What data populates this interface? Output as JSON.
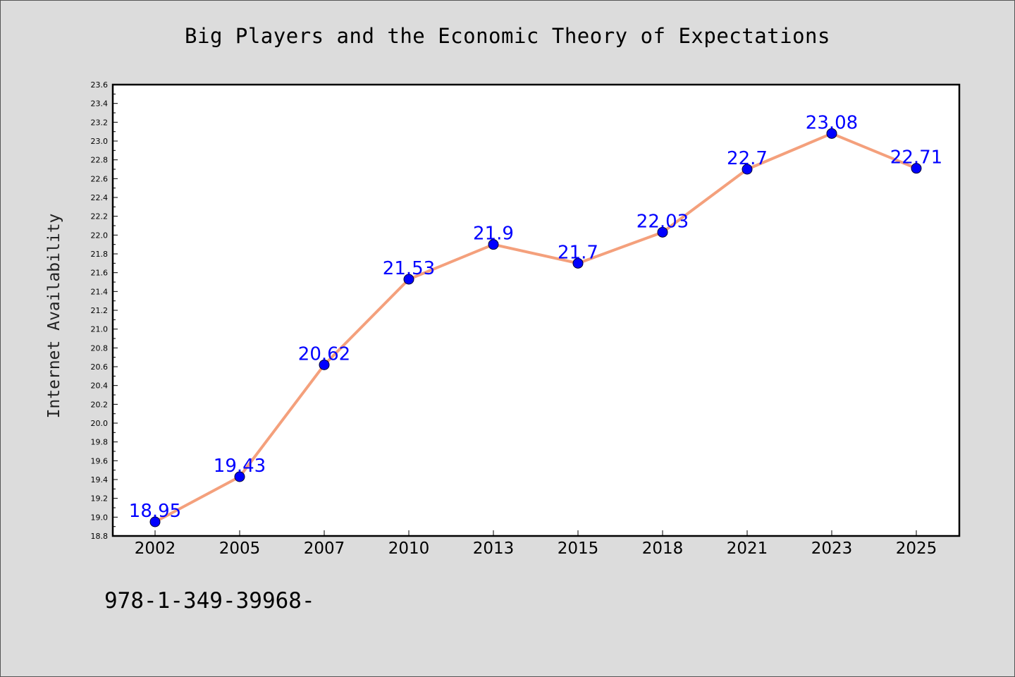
{
  "chart_data": {
    "type": "line",
    "title": "Big Players and the Economic Theory of Expectations",
    "xlabel": "",
    "ylabel": "Internet Availability",
    "categories": [
      "2002",
      "2005",
      "2007",
      "2010",
      "2013",
      "2015",
      "2018",
      "2021",
      "2023",
      "2025"
    ],
    "series": [
      {
        "values": [
          18.95,
          19.43,
          20.62,
          21.53,
          21.9,
          21.7,
          22.03,
          22.7,
          23.08,
          22.71
        ],
        "labels": [
          "18.95",
          "19.43",
          "20.62",
          "21.53",
          "21.9",
          "21.7",
          "22.03",
          "22.7",
          "23.08",
          "22.71"
        ],
        "line_color": "#f4a07c",
        "marker_color": "#0000ff"
      }
    ],
    "ylim": [
      18.8,
      23.6
    ],
    "yticks": [
      "18.8",
      "19.0",
      "19.2",
      "19.4",
      "19.6",
      "19.8",
      "20.0",
      "20.2",
      "20.4",
      "20.6",
      "20.8",
      "21.0",
      "21.2",
      "21.4",
      "21.6",
      "21.8",
      "22.0",
      "22.2",
      "22.4",
      "22.6",
      "22.8",
      "23.0",
      "23.2",
      "23.4",
      "23.6"
    ],
    "grid": false,
    "legend": "none"
  },
  "footer": {
    "isbn": "978-1-349-39968-"
  }
}
